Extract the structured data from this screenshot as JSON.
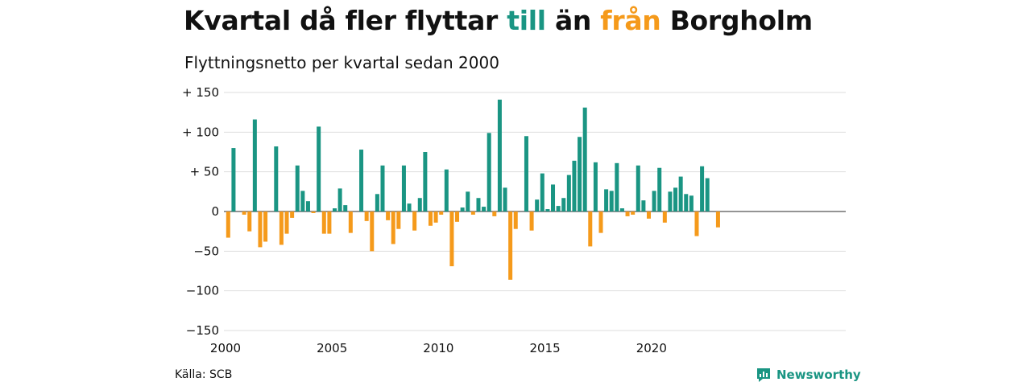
{
  "header": {
    "title_parts": [
      "Kvartal då fler flyttar ",
      "till",
      " än ",
      "från",
      " Borgholm"
    ],
    "subtitle": "Flyttningsnetto per kvartal sedan 2000"
  },
  "footer": {
    "source": "Källa: SCB",
    "brand": "Newsworthy"
  },
  "colors": {
    "positive": "#1a9583",
    "negative": "#f59a1b",
    "grid": "#dddddd"
  },
  "chart_data": {
    "type": "bar",
    "title": "",
    "xlabel": "",
    "ylabel": "",
    "ylim": [
      -150,
      150
    ],
    "yticks": [
      150,
      100,
      50,
      0,
      -50,
      -100,
      -150
    ],
    "ytick_labels": [
      "+ 150",
      "+ 100",
      "+  50",
      "0",
      "−50",
      "−100",
      "−150"
    ],
    "xticks": [
      "2000",
      "2005",
      "2010",
      "2015",
      "2020"
    ],
    "grid": true,
    "start": "2000 Q1",
    "values": [
      -33,
      80,
      0,
      -4,
      -25,
      116,
      -45,
      -38,
      0,
      82,
      -42,
      -28,
      -8,
      58,
      26,
      13,
      -2,
      107,
      -28,
      -28,
      4,
      29,
      8,
      -27,
      0,
      78,
      -12,
      -50,
      22,
      58,
      -11,
      -41,
      -22,
      58,
      10,
      -24,
      17,
      75,
      -18,
      -14,
      -4,
      53,
      -69,
      -13,
      5,
      25,
      -4,
      17,
      6,
      99,
      -6,
      141,
      30,
      -86,
      -22,
      0,
      95,
      -24,
      15,
      48,
      3,
      34,
      7,
      17,
      46,
      64,
      94,
      131,
      -44,
      62,
      -27,
      28,
      26,
      61,
      4,
      -6,
      -4,
      58,
      14,
      -9,
      26,
      55,
      -14,
      25,
      30,
      44,
      22,
      20,
      -31,
      57,
      42,
      0,
      -20
    ]
  }
}
